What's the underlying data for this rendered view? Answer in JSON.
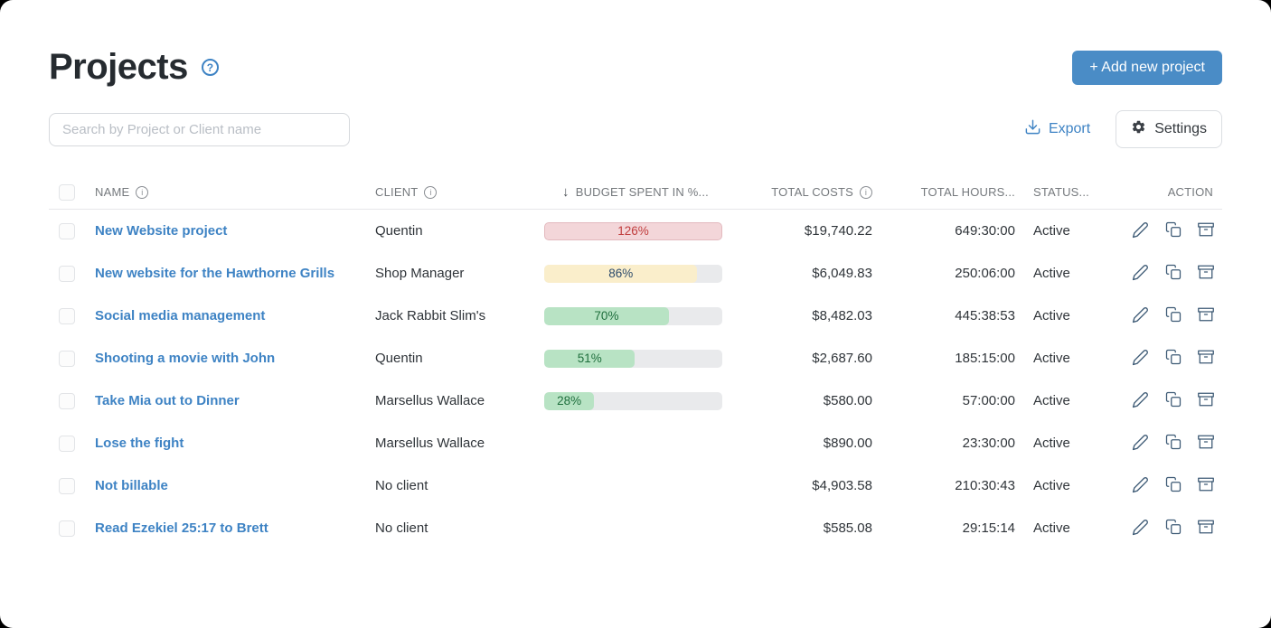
{
  "page": {
    "title": "Projects"
  },
  "toolbar": {
    "add_new_project": "+ Add new project",
    "search_placeholder": "Search by Project or Client name",
    "search_value": "",
    "export": "Export",
    "settings": "Settings"
  },
  "table": {
    "headers": {
      "name": "NAME",
      "client": "CLIENT",
      "sort_arrow": "↓",
      "budget": "BUDGET SPENT IN %...",
      "total_costs": "TOTAL COSTS",
      "total_hours": "TOTAL HOURS...",
      "status": "STATUS...",
      "action": "ACTION"
    },
    "rows": [
      {
        "name": "New Website project",
        "client": "Quentin",
        "budget_percent": 126,
        "budget_label": "126%",
        "budget_color": "red",
        "total_costs": "$19,740.22",
        "total_hours": "649:30:00",
        "status": "Active"
      },
      {
        "name": "New website for the Hawthorne Grills",
        "client": "Shop Manager",
        "budget_percent": 86,
        "budget_label": "86%",
        "budget_color": "yellow",
        "total_costs": "$6,049.83",
        "total_hours": "250:06:00",
        "status": "Active"
      },
      {
        "name": "Social media management",
        "client": "Jack Rabbit Slim's",
        "budget_percent": 70,
        "budget_label": "70%",
        "budget_color": "green",
        "total_costs": "$8,482.03",
        "total_hours": "445:38:53",
        "status": "Active"
      },
      {
        "name": "Shooting a movie with John",
        "client": "Quentin",
        "budget_percent": 51,
        "budget_label": "51%",
        "budget_color": "green",
        "total_costs": "$2,687.60",
        "total_hours": "185:15:00",
        "status": "Active"
      },
      {
        "name": "Take Mia out to Dinner",
        "client": "Marsellus Wallace",
        "budget_percent": 28,
        "budget_label": "28%",
        "budget_color": "green",
        "total_costs": "$580.00",
        "total_hours": "57:00:00",
        "status": "Active"
      },
      {
        "name": "Lose the fight",
        "client": "Marsellus Wallace",
        "budget_percent": null,
        "budget_label": null,
        "budget_color": null,
        "total_costs": "$890.00",
        "total_hours": "23:30:00",
        "status": "Active"
      },
      {
        "name": "Not billable",
        "client": "No client",
        "budget_percent": null,
        "budget_label": null,
        "budget_color": null,
        "total_costs": "$4,903.58",
        "total_hours": "210:30:43",
        "status": "Active"
      },
      {
        "name": "Read Ezekiel 25:17 to Brett",
        "client": "No client",
        "budget_percent": null,
        "budget_label": null,
        "budget_color": null,
        "total_costs": "$585.08",
        "total_hours": "29:15:14",
        "status": "Active"
      }
    ]
  },
  "icons": {
    "help": "help-circle-icon",
    "info": "info-icon",
    "sort": "sort-desc-icon",
    "export": "export-download-icon",
    "settings": "gear-icon",
    "edit": "edit-pencil-icon",
    "duplicate": "copy-icon",
    "archive": "archive-box-icon"
  },
  "colors": {
    "accent_blue": "#4a8cc6",
    "link_blue": "#3e83c4",
    "budget_red_fill": "#f3d6d9",
    "budget_red_text": "#c03d3d",
    "budget_yellow_fill": "#faeecb",
    "budget_yellow_text": "#2c4a6b",
    "budget_green_fill": "#b8e3c4",
    "budget_green_text": "#1f6f3d",
    "track_grey": "#e9eaec",
    "action_icon": "#3d5a75"
  }
}
